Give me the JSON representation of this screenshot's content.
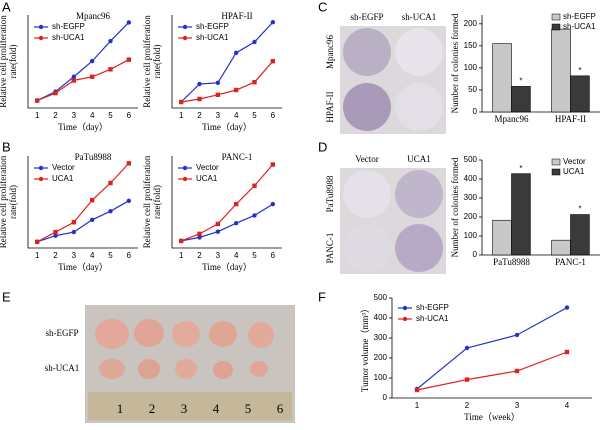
{
  "panels": [
    "A",
    "B",
    "C",
    "D",
    "E",
    "F"
  ],
  "images": {
    "C": {
      "columns": [
        "sh-EGFP",
        "sh-UCA1"
      ],
      "rows": [
        "Mpanc96",
        "HPAF-II"
      ]
    },
    "D": {
      "columns": [
        "Vector",
        "UCA1"
      ],
      "rows": [
        "PaTu8988",
        "PANC-1"
      ]
    },
    "E": {
      "rows": [
        "sh-EGFP",
        "sh-UCA1"
      ],
      "ruler": [
        "1",
        "2",
        "3",
        "4",
        "5",
        "6"
      ]
    }
  },
  "chart_data": [
    {
      "type": "line",
      "title": "Mpanc96",
      "ylabel": [
        "Relative cell proliferation",
        "rate(fold)"
      ],
      "xlabel": "Time（day）",
      "categories": [
        "1",
        "2",
        "3",
        "4",
        "5",
        "6"
      ],
      "ylim": [
        0,
        12.5
      ],
      "legend": "upper left",
      "series": [
        {
          "name": "sh-EGFP",
          "color": "#2233cc",
          "values": [
            1,
            2.2,
            4.2,
            6.3,
            9,
            11.5
          ]
        },
        {
          "name": "sh-UCA1",
          "color": "#dd2222",
          "values": [
            1,
            2,
            3.7,
            4.2,
            5.2,
            6.5
          ]
        }
      ]
    },
    {
      "type": "line",
      "title": "HPAF-II",
      "ylabel": [
        "Relative cell proliferation",
        "rate(fold)"
      ],
      "xlabel": "Time（day）",
      "categories": [
        "1",
        "2",
        "3",
        "4",
        "5",
        "6"
      ],
      "ylim": [
        0,
        15.5
      ],
      "legend": "upper left",
      "series": [
        {
          "name": "sh-EGFP",
          "color": "#2233cc",
          "values": [
            1,
            4,
            4.2,
            9.2,
            11,
            14.3
          ]
        },
        {
          "name": "sh-UCA1",
          "color": "#dd2222",
          "values": [
            1,
            1.5,
            2.2,
            3,
            4.3,
            7.8
          ]
        }
      ]
    },
    {
      "type": "line",
      "title": "PaTu8988",
      "ylabel": [
        "Relative cell proliferation",
        "rate(fold)"
      ],
      "xlabel": "Time（day）",
      "categories": [
        "1",
        "2",
        "3",
        "4",
        "5",
        "6"
      ],
      "ylim": [
        0,
        15
      ],
      "legend": "upper left",
      "series": [
        {
          "name": "Vector",
          "color": "#2233cc",
          "values": [
            1,
            2,
            2.6,
            4.6,
            6,
            7.7
          ]
        },
        {
          "name": "UCA1",
          "color": "#dd2222",
          "values": [
            1,
            2.6,
            4.2,
            7.8,
            10.6,
            13.8
          ]
        }
      ]
    },
    {
      "type": "line",
      "title": "PANC-1",
      "ylabel": [
        "Relative cell proliferation",
        "rate(fold)"
      ],
      "xlabel": "Time（day）",
      "categories": [
        "1",
        "2",
        "3",
        "4",
        "5",
        "6"
      ],
      "ylim": [
        0,
        13
      ],
      "legend": "upper left",
      "series": [
        {
          "name": "Vector",
          "color": "#2233cc",
          "values": [
            1,
            1.5,
            2.3,
            3.5,
            4.6,
            6.2
          ]
        },
        {
          "name": "UCA1",
          "color": "#dd2222",
          "values": [
            1,
            2,
            3.4,
            6.2,
            8.8,
            11.8
          ]
        }
      ]
    },
    {
      "type": "bar",
      "ylabel": [
        "Number of colonies formed"
      ],
      "categories": [
        "Mpanc96",
        "HPAF-II"
      ],
      "ylim": [
        0,
        220
      ],
      "yticks": [
        0,
        50,
        100,
        150,
        200
      ],
      "legend": "upper right",
      "annotation": "*",
      "series": [
        {
          "name": "sh-EGFP",
          "color": "#c8c8c8",
          "values": [
            155,
            188
          ]
        },
        {
          "name": "sh-UCA1",
          "color": "#3a3a3a",
          "values": [
            58,
            82
          ]
        }
      ]
    },
    {
      "type": "bar",
      "ylabel": [
        "Number of colonies formed"
      ],
      "categories": [
        "PaTu8988",
        "PANC-1"
      ],
      "ylim": [
        0,
        500
      ],
      "yticks": [
        0,
        100,
        200,
        300,
        400,
        500
      ],
      "legend": "upper right",
      "annotation": "*",
      "series": [
        {
          "name": "Vector",
          "color": "#c8c8c8",
          "values": [
            183,
            78
          ]
        },
        {
          "name": "UCA1",
          "color": "#3a3a3a",
          "values": [
            428,
            213
          ]
        }
      ]
    },
    {
      "type": "line",
      "ylabel": [
        "Tumor volume（mm³）"
      ],
      "xlabel": "Time（week）",
      "categories": [
        "1",
        "2",
        "3",
        "4"
      ],
      "ylim": [
        0,
        500
      ],
      "yticks": [
        0,
        100,
        200,
        300,
        400,
        500
      ],
      "legend": "upper left",
      "series": [
        {
          "name": "sh-EGFP",
          "color": "#2233cc",
          "values": [
            45,
            250,
            315,
            452
          ]
        },
        {
          "name": "sh-UCA1",
          "color": "#dd2222",
          "values": [
            40,
            92,
            135,
            230
          ]
        }
      ]
    }
  ]
}
